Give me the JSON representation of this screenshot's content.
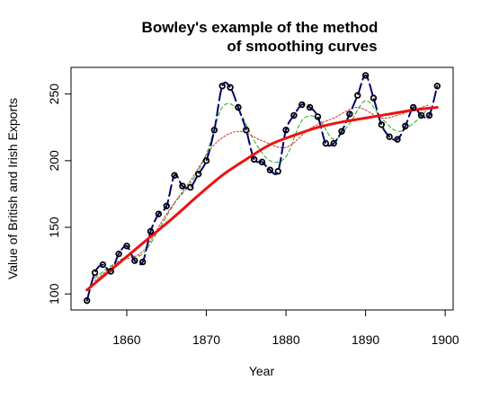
{
  "chart_data": {
    "type": "line",
    "title_lines": [
      "Bowley's example of the method",
      "of smoothing curves"
    ],
    "xlabel": "Year",
    "ylabel": "Value of British and Irish Exports",
    "xlim": [
      1853,
      1901
    ],
    "ylim": [
      88,
      270
    ],
    "xticks": [
      1860,
      1870,
      1880,
      1890,
      1900
    ],
    "yticks": [
      100,
      150,
      200,
      250
    ],
    "grid": false,
    "series": [
      {
        "role": "observed-points",
        "x": [
          1855,
          1856,
          1857,
          1858,
          1859,
          1860,
          1861,
          1862,
          1863,
          1864,
          1865,
          1866,
          1867,
          1868,
          1869,
          1870,
          1871,
          1872,
          1873,
          1874,
          1875,
          1876,
          1877,
          1878,
          1879,
          1880,
          1881,
          1882,
          1883,
          1884,
          1885,
          1886,
          1887,
          1888,
          1889,
          1890,
          1891,
          1892,
          1893,
          1894,
          1895,
          1896,
          1897,
          1898,
          1899
        ],
        "y": [
          95,
          116,
          122,
          117,
          130,
          136,
          125,
          124,
          147,
          160,
          166,
          189,
          181,
          180,
          190,
          200,
          223,
          256,
          255,
          240,
          223,
          201,
          199,
          193,
          192,
          223,
          234,
          242,
          240,
          233,
          213,
          213,
          222,
          235,
          249,
          264,
          247,
          227,
          218,
          216,
          226,
          240,
          234,
          234,
          256
        ],
        "style": {
          "color": "#000000",
          "marker": "open-circle"
        }
      },
      {
        "role": "interpolated-curve",
        "x": [
          1855,
          1856,
          1857,
          1858,
          1859,
          1860,
          1861,
          1862,
          1863,
          1864,
          1865,
          1866,
          1867,
          1868,
          1869,
          1870,
          1871,
          1872,
          1873,
          1874,
          1875,
          1876,
          1877,
          1878,
          1879,
          1880,
          1881,
          1882,
          1883,
          1884,
          1885,
          1886,
          1887,
          1888,
          1889,
          1890,
          1891,
          1892,
          1893,
          1894,
          1895,
          1896,
          1897,
          1898,
          1899
        ],
        "y": [
          95,
          116,
          122,
          117,
          130,
          136,
          125,
          124,
          147,
          160,
          166,
          189,
          181,
          180,
          190,
          200,
          223,
          256,
          255,
          240,
          223,
          201,
          199,
          193,
          192,
          223,
          234,
          242,
          240,
          233,
          213,
          213,
          222,
          235,
          249,
          264,
          247,
          227,
          218,
          216,
          226,
          240,
          234,
          234,
          256
        ],
        "style": {
          "color": "#00006e",
          "dash": "long-dash",
          "width": 2
        }
      },
      {
        "role": "short-period-smooth",
        "x": [
          1856,
          1858,
          1860,
          1862,
          1864,
          1866,
          1868,
          1870,
          1872,
          1874,
          1876,
          1878,
          1880,
          1882,
          1884,
          1886,
          1888,
          1890,
          1892,
          1894,
          1896,
          1898
        ],
        "y": [
          112,
          121,
          128,
          130,
          148,
          168,
          183,
          205,
          240,
          238,
          215,
          200,
          203,
          230,
          232,
          216,
          228,
          245,
          232,
          222,
          228,
          240
        ],
        "style": {
          "color": "#22aa22",
          "dash": "short-dash",
          "width": 1
        }
      },
      {
        "role": "medium-period-smooth",
        "x": [
          1856,
          1859,
          1862,
          1865,
          1868,
          1871,
          1874,
          1877,
          1880,
          1883,
          1886,
          1889,
          1892,
          1895,
          1898
        ],
        "y": [
          110,
          124,
          132,
          160,
          185,
          212,
          222,
          215,
          210,
          224,
          232,
          240,
          232,
          236,
          242
        ],
        "style": {
          "color": "#cc3333",
          "dash": "dotted",
          "width": 1
        }
      },
      {
        "role": "trend",
        "x": [
          1855,
          1857,
          1860,
          1863,
          1866,
          1869,
          1872,
          1875,
          1878,
          1881,
          1884,
          1887,
          1890,
          1893,
          1896,
          1899
        ],
        "y": [
          103,
          113,
          128,
          143,
          158,
          174,
          189,
          201,
          212,
          219,
          225,
          229,
          232,
          235,
          238,
          240
        ],
        "style": {
          "color": "#ee1111",
          "dash": "solid",
          "width": 3
        }
      }
    ]
  }
}
